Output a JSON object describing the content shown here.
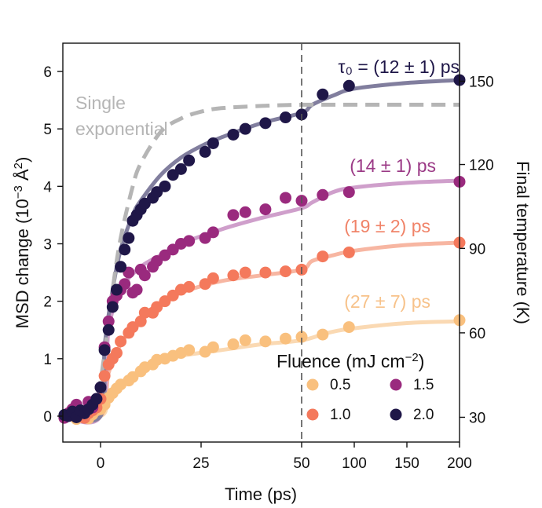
{
  "chart_data": {
    "type": "scatter",
    "title": "",
    "xlabel": "Time (ps)",
    "ylabel": "MSD change (10",
    "ylabel_exp": "−3",
    "ylabel_unit": " Å",
    "ylabel_unit_exp": "2",
    "ylabel_close": ")",
    "y2label": "Final temperature (K)",
    "x_axis_note": "linear scale from -10 to 50 ps, compressed scale from 50 to 200 ps (break marked by dashed line)",
    "ylim": [
      -0.45,
      6.5
    ],
    "x_ticks": [
      0,
      25,
      50,
      100,
      150,
      200
    ],
    "x_tick_labels": [
      "0",
      "25",
      "50",
      "100",
      "150",
      "200"
    ],
    "y_ticks": [
      0,
      1,
      2,
      3,
      4,
      5,
      6
    ],
    "y_tick_labels": [
      "0",
      "1",
      "2",
      "3",
      "4",
      "5",
      "6"
    ],
    "y2_ticks": [
      {
        "label": "30",
        "y": -0.02
      },
      {
        "label": "60",
        "y": 1.45
      },
      {
        "label": "90",
        "y": 2.92
      },
      {
        "label": "120",
        "y": 4.38
      },
      {
        "label": "150",
        "y": 5.83
      }
    ],
    "breakpoint": 50,
    "series": [
      {
        "name": "0.5",
        "color": "#f9c07e",
        "fit_color": "#fad9b3",
        "fit_label": "(27 ± 7) ps",
        "label_color": "#f7c28a",
        "points": [
          [
            -9,
            0.0
          ],
          [
            -7,
            0.05
          ],
          [
            -6,
            -0.05
          ],
          [
            -5,
            0.02
          ],
          [
            -4,
            0.08
          ],
          [
            -3,
            -0.04
          ],
          [
            -2,
            0.03
          ],
          [
            -1,
            0.1
          ],
          [
            0,
            0.12
          ],
          [
            1,
            0.2
          ],
          [
            2,
            0.32
          ],
          [
            3,
            0.4
          ],
          [
            4,
            0.48
          ],
          [
            5,
            0.55
          ],
          [
            7,
            0.62
          ],
          [
            8,
            0.68
          ],
          [
            10,
            0.78
          ],
          [
            11,
            0.85
          ],
          [
            13,
            0.9
          ],
          [
            14,
            0.98
          ],
          [
            16,
            1.0
          ],
          [
            18,
            1.05
          ],
          [
            20,
            1.1
          ],
          [
            22,
            1.15
          ],
          [
            26,
            1.12
          ],
          [
            28,
            1.2
          ],
          [
            33,
            1.25
          ],
          [
            36,
            1.32
          ],
          [
            41,
            1.3
          ],
          [
            46,
            1.35
          ],
          [
            50,
            1.38
          ],
          [
            70,
            1.42
          ],
          [
            95,
            1.55
          ],
          [
            200,
            1.67
          ]
        ],
        "fit": [
          [
            -10,
            0.0
          ],
          [
            0,
            0.0
          ],
          [
            2,
            0.3
          ],
          [
            5,
            0.55
          ],
          [
            10,
            0.8
          ],
          [
            15,
            0.95
          ],
          [
            20,
            1.05
          ],
          [
            30,
            1.15
          ],
          [
            40,
            1.25
          ],
          [
            50,
            1.32
          ],
          [
            75,
            1.45
          ],
          [
            100,
            1.53
          ],
          [
            150,
            1.62
          ],
          [
            200,
            1.65
          ]
        ]
      },
      {
        "name": "1.0",
        "color": "#f4795c",
        "fit_color": "#f7b6a2",
        "fit_label": "(19 ± 2) ps",
        "label_color": "#f08368",
        "points": [
          [
            -9,
            -0.02
          ],
          [
            -7,
            0.04
          ],
          [
            -6,
            0.0
          ],
          [
            -5,
            0.06
          ],
          [
            -4,
            -0.03
          ],
          [
            -3,
            0.05
          ],
          [
            -2,
            0.1
          ],
          [
            -1,
            0.15
          ],
          [
            0,
            0.3
          ],
          [
            1,
            0.7
          ],
          [
            2,
            0.9
          ],
          [
            3,
            1.0
          ],
          [
            4,
            1.1
          ],
          [
            5,
            1.3
          ],
          [
            7,
            1.45
          ],
          [
            8,
            1.55
          ],
          [
            10,
            1.65
          ],
          [
            11,
            1.8
          ],
          [
            13,
            1.8
          ],
          [
            14,
            1.9
          ],
          [
            16,
            2.0
          ],
          [
            18,
            2.1
          ],
          [
            20,
            2.2
          ],
          [
            22,
            2.25
          ],
          [
            26,
            2.3
          ],
          [
            28,
            2.4
          ],
          [
            33,
            2.45
          ],
          [
            36,
            2.5
          ],
          [
            41,
            2.5
          ],
          [
            46,
            2.52
          ],
          [
            50,
            2.55
          ],
          [
            70,
            2.78
          ],
          [
            95,
            2.85
          ],
          [
            200,
            3.02
          ]
        ],
        "fit": [
          [
            -10,
            0.0
          ],
          [
            0,
            0.0
          ],
          [
            2,
            0.75
          ],
          [
            5,
            1.25
          ],
          [
            10,
            1.7
          ],
          [
            15,
            1.95
          ],
          [
            20,
            2.15
          ],
          [
            30,
            2.35
          ],
          [
            40,
            2.45
          ],
          [
            50,
            2.55
          ],
          [
            60,
            2.7
          ],
          [
            80,
            2.8
          ],
          [
            100,
            2.88
          ],
          [
            150,
            2.98
          ],
          [
            200,
            3.02
          ]
        ]
      },
      {
        "name": "1.5",
        "color": "#9a2a7e",
        "fit_color": "#cf9fcb",
        "fit_label": "(14 ± 1) ps",
        "label_color": "#9b3a86",
        "points": [
          [
            -9,
            -0.03
          ],
          [
            -8,
            0.05
          ],
          [
            -7,
            0.12
          ],
          [
            -6,
            0.2
          ],
          [
            -5,
            0.1
          ],
          [
            -4,
            0.05
          ],
          [
            -3,
            0.25
          ],
          [
            -2,
            0.15
          ],
          [
            -1,
            0.3
          ],
          [
            0,
            0.5
          ],
          [
            1,
            1.2
          ],
          [
            2,
            1.65
          ],
          [
            3,
            2.0
          ],
          [
            4,
            2.1
          ],
          [
            5,
            2.2
          ],
          [
            6,
            2.3
          ],
          [
            7,
            2.5
          ],
          [
            8,
            2.15
          ],
          [
            9,
            2.2
          ],
          [
            10,
            2.55
          ],
          [
            11,
            2.45
          ],
          [
            13,
            2.6
          ],
          [
            14,
            2.7
          ],
          [
            16,
            2.8
          ],
          [
            18,
            2.9
          ],
          [
            20,
            3.0
          ],
          [
            22,
            3.05
          ],
          [
            26,
            3.1
          ],
          [
            28,
            3.2
          ],
          [
            33,
            3.5
          ],
          [
            36,
            3.55
          ],
          [
            41,
            3.6
          ],
          [
            46,
            3.8
          ],
          [
            50,
            3.75
          ],
          [
            70,
            3.85
          ],
          [
            95,
            3.9
          ],
          [
            200,
            4.08
          ]
        ],
        "fit": [
          [
            -10,
            0.0
          ],
          [
            0,
            0.0
          ],
          [
            2,
            1.5
          ],
          [
            5,
            2.2
          ],
          [
            10,
            2.6
          ],
          [
            15,
            2.8
          ],
          [
            20,
            3.0
          ],
          [
            30,
            3.25
          ],
          [
            40,
            3.45
          ],
          [
            50,
            3.62
          ],
          [
            60,
            3.72
          ],
          [
            80,
            3.9
          ],
          [
            100,
            3.98
          ],
          [
            150,
            4.06
          ],
          [
            200,
            4.1
          ]
        ]
      },
      {
        "name": "2.0",
        "color": "#1f1748",
        "fit_color": "#817e9e",
        "fit_label": "τ₀ = (12 ± 1) ps",
        "label_color": "#1f1748",
        "points": [
          [
            -9,
            0.02
          ],
          [
            -8,
            0.0
          ],
          [
            -7,
            0.08
          ],
          [
            -6,
            -0.02
          ],
          [
            -5,
            0.1
          ],
          [
            -4,
            0.05
          ],
          [
            -3,
            0.12
          ],
          [
            -2,
            0.2
          ],
          [
            -1,
            0.3
          ],
          [
            0,
            0.5
          ],
          [
            1,
            1.15
          ],
          [
            2,
            1.5
          ],
          [
            3,
            1.9
          ],
          [
            4,
            2.2
          ],
          [
            5,
            2.6
          ],
          [
            6,
            2.9
          ],
          [
            7,
            3.1
          ],
          [
            8,
            3.4
          ],
          [
            9,
            3.5
          ],
          [
            10,
            3.6
          ],
          [
            11,
            3.7
          ],
          [
            13,
            3.8
          ],
          [
            14,
            3.9
          ],
          [
            16,
            4.0
          ],
          [
            18,
            4.2
          ],
          [
            20,
            4.3
          ],
          [
            22,
            4.45
          ],
          [
            26,
            4.6
          ],
          [
            28,
            4.75
          ],
          [
            33,
            4.9
          ],
          [
            36,
            5.0
          ],
          [
            41,
            5.1
          ],
          [
            46,
            5.2
          ],
          [
            50,
            5.25
          ],
          [
            70,
            5.6
          ],
          [
            95,
            5.75
          ],
          [
            200,
            5.85
          ]
        ],
        "fit": [
          [
            -10,
            0.0
          ],
          [
            0,
            0.0
          ],
          [
            1,
            1.2
          ],
          [
            3,
            2.2
          ],
          [
            5,
            2.9
          ],
          [
            8,
            3.5
          ],
          [
            10,
            3.75
          ],
          [
            15,
            4.2
          ],
          [
            20,
            4.5
          ],
          [
            25,
            4.7
          ],
          [
            30,
            4.85
          ],
          [
            40,
            5.1
          ],
          [
            50,
            5.28
          ],
          [
            60,
            5.42
          ],
          [
            80,
            5.58
          ],
          [
            100,
            5.7
          ],
          [
            150,
            5.8
          ],
          [
            200,
            5.85
          ]
        ]
      }
    ],
    "single_exponential": {
      "label_line1": "Single",
      "label_line2": "exponential",
      "color": "#b5b5b5",
      "curve": [
        [
          -2,
          0.0
        ],
        [
          0,
          0.6
        ],
        [
          3,
          2.2
        ],
        [
          5,
          3.1
        ],
        [
          8,
          4.0
        ],
        [
          10,
          4.4
        ],
        [
          15,
          4.95
        ],
        [
          20,
          5.18
        ],
        [
          25,
          5.3
        ],
        [
          30,
          5.36
        ],
        [
          40,
          5.4
        ],
        [
          50,
          5.42
        ],
        [
          100,
          5.42
        ],
        [
          200,
          5.42
        ]
      ]
    },
    "legend": {
      "title": "Fluence (mJ cm",
      "title_exp": "−2",
      "title_close": ")",
      "placement": "bottom-right"
    }
  }
}
